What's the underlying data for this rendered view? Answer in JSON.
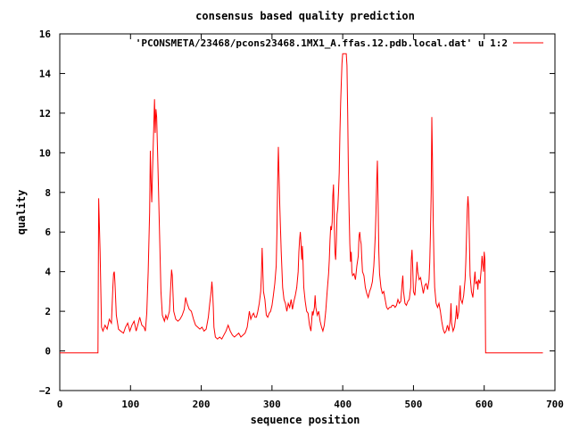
{
  "chart_data": {
    "type": "line",
    "title": "consensus based quality prediction",
    "xlabel": "sequence position",
    "ylabel": "quality",
    "xlim": [
      0,
      700
    ],
    "ylim": [
      -2,
      16
    ],
    "xticks": [
      0,
      100,
      200,
      300,
      400,
      500,
      600,
      700
    ],
    "yticks": [
      -2,
      0,
      2,
      4,
      6,
      8,
      10,
      12,
      14,
      16
    ],
    "xtick_labels": [
      "0",
      "100",
      "200",
      "300",
      "400",
      "500",
      "600",
      "700"
    ],
    "ytick_labels": [
      "−2",
      "0",
      "2",
      "4",
      "6",
      "8",
      "10",
      "12",
      "14",
      "16"
    ],
    "grid": false,
    "legend_position": "top-right",
    "series": [
      {
        "name": "'PCONSMETA/23468/pcons23468.1MX1_A.ffas.12.pdb.local.dat' u 1:2",
        "color": "#ff0000",
        "points": [
          [
            0,
            -0.1
          ],
          [
            54,
            -0.1
          ],
          [
            55,
            7.7
          ],
          [
            57,
            5.0
          ],
          [
            59,
            1.2
          ],
          [
            61,
            1.0
          ],
          [
            64,
            1.3
          ],
          [
            67,
            1.1
          ],
          [
            70,
            1.6
          ],
          [
            73,
            1.4
          ],
          [
            75,
            3.2
          ],
          [
            76,
            3.9
          ],
          [
            77,
            4.0
          ],
          [
            78,
            3.5
          ],
          [
            80,
            1.8
          ],
          [
            83,
            1.1
          ],
          [
            86,
            1.0
          ],
          [
            90,
            0.9
          ],
          [
            93,
            1.2
          ],
          [
            96,
            1.4
          ],
          [
            99,
            1.0
          ],
          [
            102,
            1.3
          ],
          [
            105,
            1.5
          ],
          [
            108,
            1.0
          ],
          [
            111,
            1.4
          ],
          [
            113,
            1.7
          ],
          [
            116,
            1.3
          ],
          [
            119,
            1.2
          ],
          [
            121,
            1.0
          ],
          [
            123,
            1.9
          ],
          [
            125,
            4.0
          ],
          [
            127,
            7.0
          ],
          [
            128,
            10.1
          ],
          [
            129,
            8.5
          ],
          [
            130,
            7.5
          ],
          [
            131,
            9.0
          ],
          [
            133,
            11.4
          ],
          [
            134,
            12.7
          ],
          [
            135,
            11.0
          ],
          [
            136,
            12.2
          ],
          [
            137,
            11.8
          ],
          [
            139,
            9.0
          ],
          [
            141,
            6.0
          ],
          [
            143,
            3.0
          ],
          [
            145,
            1.8
          ],
          [
            148,
            1.5
          ],
          [
            150,
            1.8
          ],
          [
            152,
            1.6
          ],
          [
            155,
            2.0
          ],
          [
            157,
            3.4
          ],
          [
            158,
            4.1
          ],
          [
            159,
            3.8
          ],
          [
            161,
            2.0
          ],
          [
            164,
            1.6
          ],
          [
            167,
            1.5
          ],
          [
            170,
            1.6
          ],
          [
            173,
            1.8
          ],
          [
            176,
            2.1
          ],
          [
            178,
            2.7
          ],
          [
            180,
            2.4
          ],
          [
            183,
            2.1
          ],
          [
            186,
            2.0
          ],
          [
            189,
            1.6
          ],
          [
            192,
            1.3
          ],
          [
            195,
            1.2
          ],
          [
            198,
            1.1
          ],
          [
            201,
            1.2
          ],
          [
            204,
            1.0
          ],
          [
            207,
            1.1
          ],
          [
            210,
            1.7
          ],
          [
            212,
            2.4
          ],
          [
            214,
            3.0
          ],
          [
            215,
            3.5
          ],
          [
            216,
            3.0
          ],
          [
            217,
            2.2
          ],
          [
            218,
            1.2
          ],
          [
            220,
            0.7
          ],
          [
            223,
            0.6
          ],
          [
            226,
            0.7
          ],
          [
            229,
            0.6
          ],
          [
            232,
            0.8
          ],
          [
            235,
            1.0
          ],
          [
            238,
            1.3
          ],
          [
            241,
            1.0
          ],
          [
            244,
            0.8
          ],
          [
            247,
            0.7
          ],
          [
            250,
            0.8
          ],
          [
            253,
            0.9
          ],
          [
            256,
            0.7
          ],
          [
            259,
            0.8
          ],
          [
            262,
            0.9
          ],
          [
            265,
            1.2
          ],
          [
            268,
            2.0
          ],
          [
            270,
            1.6
          ],
          [
            272,
            1.8
          ],
          [
            274,
            1.9
          ],
          [
            276,
            1.7
          ],
          [
            278,
            1.7
          ],
          [
            280,
            2.0
          ],
          [
            282,
            2.4
          ],
          [
            284,
            3.0
          ],
          [
            285,
            3.8
          ],
          [
            286,
            5.2
          ],
          [
            287,
            4.2
          ],
          [
            288,
            3.0
          ],
          [
            290,
            2.6
          ],
          [
            292,
            1.8
          ],
          [
            294,
            1.7
          ],
          [
            296,
            1.9
          ],
          [
            298,
            2.0
          ],
          [
            300,
            2.3
          ],
          [
            302,
            2.8
          ],
          [
            304,
            3.4
          ],
          [
            306,
            4.3
          ],
          [
            307,
            6.0
          ],
          [
            308,
            8.5
          ],
          [
            309,
            10.3
          ],
          [
            310,
            8.8
          ],
          [
            311,
            7.3
          ],
          [
            313,
            5.0
          ],
          [
            315,
            3.2
          ],
          [
            317,
            2.6
          ],
          [
            319,
            2.4
          ],
          [
            321,
            2.0
          ],
          [
            323,
            2.4
          ],
          [
            325,
            2.2
          ],
          [
            327,
            2.6
          ],
          [
            329,
            2.1
          ],
          [
            331,
            2.5
          ],
          [
            333,
            2.8
          ],
          [
            335,
            3.2
          ],
          [
            337,
            4.0
          ],
          [
            338,
            5.0
          ],
          [
            339,
            5.6
          ],
          [
            340,
            6.0
          ],
          [
            341,
            5.4
          ],
          [
            342,
            4.6
          ],
          [
            343,
            5.3
          ],
          [
            344,
            4.4
          ],
          [
            345,
            3.2
          ],
          [
            347,
            2.5
          ],
          [
            349,
            2.0
          ],
          [
            351,
            1.9
          ],
          [
            353,
            1.3
          ],
          [
            355,
            1.0
          ],
          [
            356,
            1.5
          ],
          [
            357,
            2.0
          ],
          [
            358,
            1.8
          ],
          [
            360,
            2.2
          ],
          [
            361,
            2.8
          ],
          [
            362,
            2.2
          ],
          [
            364,
            1.8
          ],
          [
            366,
            2.0
          ],
          [
            368,
            1.5
          ],
          [
            370,
            1.2
          ],
          [
            372,
            1.0
          ],
          [
            374,
            1.3
          ],
          [
            376,
            2.0
          ],
          [
            378,
            3.0
          ],
          [
            380,
            3.9
          ],
          [
            381,
            4.6
          ],
          [
            382,
            5.6
          ],
          [
            383,
            6.3
          ],
          [
            384,
            6.1
          ],
          [
            385,
            6.5
          ],
          [
            386,
            7.8
          ],
          [
            387,
            8.4
          ],
          [
            388,
            6.7
          ],
          [
            389,
            5.0
          ],
          [
            390,
            4.6
          ],
          [
            391,
            5.5
          ],
          [
            392,
            6.9
          ],
          [
            393,
            7.2
          ],
          [
            394,
            8.0
          ],
          [
            395,
            9.0
          ],
          [
            396,
            11.0
          ],
          [
            397,
            12.5
          ],
          [
            398,
            13.6
          ],
          [
            399,
            14.5
          ],
          [
            400,
            15.0
          ],
          [
            405,
            15.0
          ],
          [
            406,
            14.4
          ],
          [
            407,
            12.0
          ],
          [
            408,
            9.0
          ],
          [
            409,
            7.0
          ],
          [
            410,
            5.4
          ],
          [
            411,
            4.5
          ],
          [
            412,
            5.0
          ],
          [
            413,
            4.0
          ],
          [
            414,
            3.8
          ],
          [
            416,
            3.9
          ],
          [
            418,
            3.6
          ],
          [
            420,
            4.3
          ],
          [
            422,
            4.8
          ],
          [
            423,
            5.8
          ],
          [
            424,
            6.0
          ],
          [
            425,
            5.6
          ],
          [
            426,
            5.4
          ],
          [
            427,
            4.6
          ],
          [
            428,
            4.0
          ],
          [
            430,
            3.8
          ],
          [
            432,
            3.2
          ],
          [
            434,
            2.9
          ],
          [
            436,
            2.7
          ],
          [
            438,
            3.0
          ],
          [
            440,
            3.2
          ],
          [
            442,
            3.5
          ],
          [
            444,
            4.3
          ],
          [
            445,
            5.0
          ],
          [
            446,
            5.8
          ],
          [
            447,
            7.0
          ],
          [
            448,
            8.5
          ],
          [
            449,
            9.6
          ],
          [
            450,
            7.5
          ],
          [
            451,
            5.0
          ],
          [
            452,
            3.9
          ],
          [
            454,
            3.2
          ],
          [
            456,
            2.9
          ],
          [
            458,
            3.0
          ],
          [
            460,
            2.6
          ],
          [
            462,
            2.2
          ],
          [
            464,
            2.1
          ],
          [
            466,
            2.2
          ],
          [
            468,
            2.2
          ],
          [
            470,
            2.3
          ],
          [
            472,
            2.3
          ],
          [
            474,
            2.2
          ],
          [
            476,
            2.3
          ],
          [
            478,
            2.6
          ],
          [
            480,
            2.4
          ],
          [
            482,
            2.5
          ],
          [
            484,
            3.4
          ],
          [
            485,
            3.8
          ],
          [
            486,
            3.0
          ],
          [
            488,
            2.4
          ],
          [
            490,
            2.3
          ],
          [
            492,
            2.5
          ],
          [
            494,
            2.6
          ],
          [
            496,
            3.2
          ],
          [
            497,
            4.6
          ],
          [
            498,
            5.1
          ],
          [
            499,
            4.2
          ],
          [
            500,
            3.0
          ],
          [
            502,
            2.8
          ],
          [
            504,
            3.8
          ],
          [
            505,
            4.5
          ],
          [
            506,
            4.0
          ],
          [
            508,
            3.6
          ],
          [
            510,
            3.7
          ],
          [
            512,
            3.3
          ],
          [
            514,
            2.9
          ],
          [
            516,
            3.3
          ],
          [
            518,
            3.4
          ],
          [
            520,
            3.1
          ],
          [
            522,
            3.6
          ],
          [
            523,
            4.5
          ],
          [
            524,
            6.0
          ],
          [
            525,
            8.0
          ],
          [
            526,
            11.8
          ],
          [
            527,
            9.5
          ],
          [
            528,
            6.5
          ],
          [
            529,
            4.5
          ],
          [
            530,
            3.2
          ],
          [
            532,
            2.4
          ],
          [
            534,
            2.2
          ],
          [
            536,
            2.4
          ],
          [
            538,
            2.0
          ],
          [
            540,
            1.5
          ],
          [
            542,
            1.1
          ],
          [
            544,
            0.9
          ],
          [
            546,
            1.0
          ],
          [
            548,
            1.3
          ],
          [
            550,
            1.0
          ],
          [
            552,
            1.6
          ],
          [
            553,
            2.4
          ],
          [
            554,
            1.4
          ],
          [
            556,
            1.0
          ],
          [
            558,
            1.2
          ],
          [
            560,
            1.8
          ],
          [
            561,
            2.3
          ],
          [
            562,
            1.6
          ],
          [
            564,
            2.0
          ],
          [
            565,
            2.8
          ],
          [
            566,
            3.3
          ],
          [
            567,
            2.6
          ],
          [
            569,
            2.4
          ],
          [
            571,
            2.8
          ],
          [
            573,
            3.6
          ],
          [
            574,
            4.5
          ],
          [
            575,
            5.8
          ],
          [
            576,
            7.1
          ],
          [
            577,
            7.8
          ],
          [
            578,
            7.2
          ],
          [
            579,
            5.6
          ],
          [
            580,
            3.8
          ],
          [
            582,
            3.0
          ],
          [
            584,
            2.7
          ],
          [
            586,
            3.6
          ],
          [
            587,
            4.0
          ],
          [
            588,
            3.4
          ],
          [
            590,
            3.5
          ],
          [
            591,
            3.1
          ],
          [
            592,
            3.6
          ],
          [
            594,
            3.4
          ],
          [
            596,
            4.2
          ],
          [
            597,
            4.8
          ],
          [
            598,
            4.4
          ],
          [
            599,
            4.0
          ],
          [
            600,
            5.0
          ],
          [
            601,
            4.6
          ],
          [
            602,
            -0.1
          ],
          [
            683,
            -0.1
          ]
        ]
      }
    ]
  }
}
